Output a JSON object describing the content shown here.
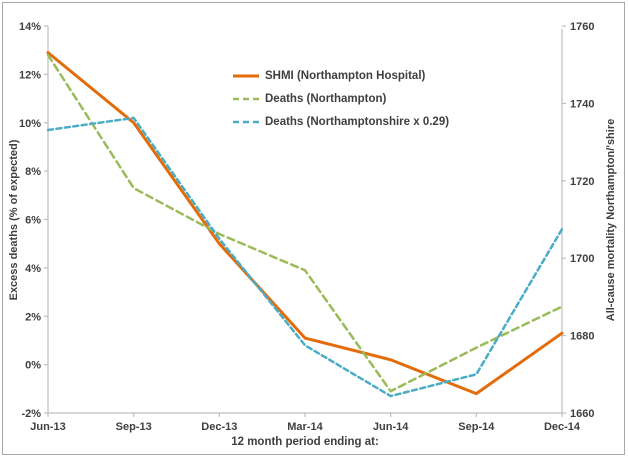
{
  "chart_data": {
    "type": "line",
    "title": "",
    "xlabel": "12 month period ending at:",
    "ylabel_left": "Excess deaths (% of expected)",
    "ylabel_right": "All-cause mortality Northampton/'shire",
    "categories": [
      "Jun-13",
      "Sep-13",
      "Dec-13",
      "Mar-14",
      "Jun-14",
      "Sep-14",
      "Dec-14"
    ],
    "left_axis": {
      "min": -2,
      "max": 14,
      "step": 2,
      "format": "percent",
      "tick_labels": [
        "14%",
        "12%",
        "10%",
        "8%",
        "6%",
        "4%",
        "2%",
        "0%",
        "-2%"
      ]
    },
    "right_axis": {
      "min": 1660,
      "max": 1760,
      "step": 20,
      "tick_labels": [
        "1760",
        "1740",
        "1720",
        "1700",
        "1680",
        "1660"
      ]
    },
    "grid": false,
    "legend_position": "inside-top-center",
    "series": [
      {
        "name": "SHMI (Northampton Hospital)",
        "color": "#E36C0A",
        "style": "solid",
        "width": 3,
        "values": [
          12.9,
          10.0,
          5.0,
          1.1,
          0.2,
          -1.2,
          1.3
        ]
      },
      {
        "name": "Deaths (Northampton)",
        "color": "#9BBB59",
        "style": "dashed",
        "width": 2.5,
        "values": [
          12.8,
          7.3,
          5.4,
          3.9,
          -1.1,
          0.7,
          2.4
        ]
      },
      {
        "name": "Deaths (Northamptonshire x 0.29)",
        "color": "#4BACC6",
        "style": "dashed",
        "width": 2.5,
        "values": [
          9.7,
          10.2,
          5.2,
          0.8,
          -1.3,
          -0.4,
          5.6
        ]
      }
    ]
  },
  "colors": {
    "axis_line": "#BFBFBF",
    "text": "#3F3F3F",
    "frame_border": "#A8A8A8",
    "background": "#FFFFFF"
  }
}
